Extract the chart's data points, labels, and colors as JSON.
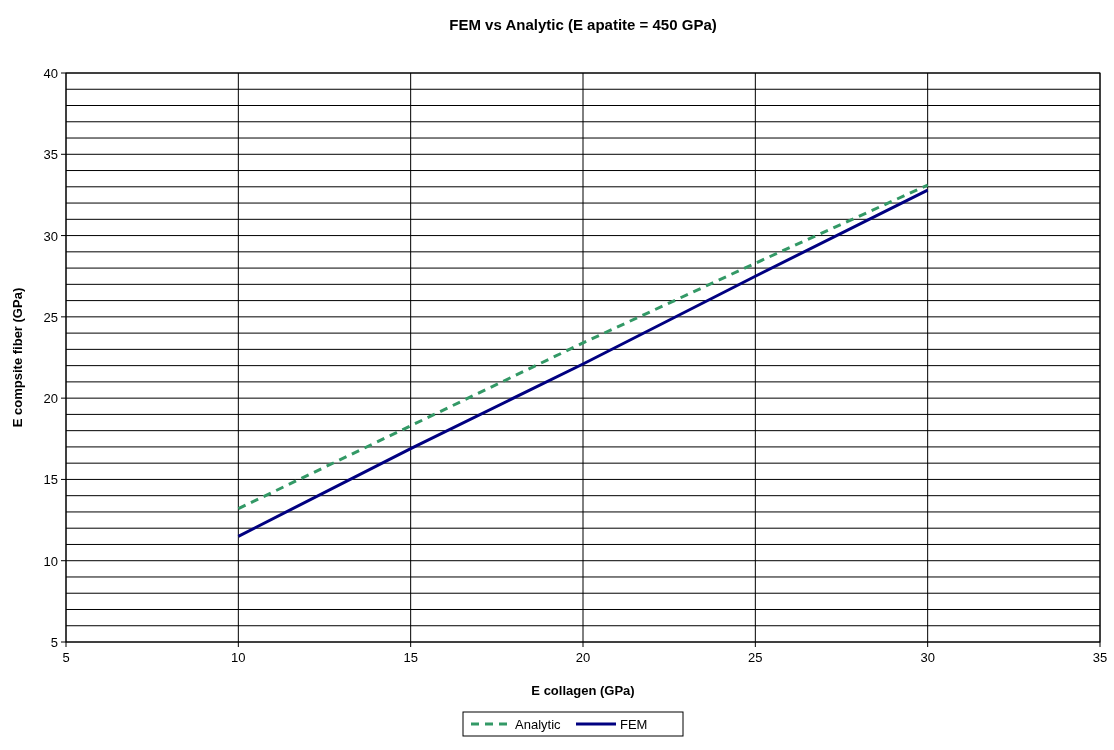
{
  "chart_data": {
    "type": "line",
    "title": "FEM vs Analytic (E apatite = 450 GPa)",
    "xlabel": "E collagen (GPa)",
    "ylabel": "E compsite fiber (GPa)",
    "xlim": [
      5,
      35
    ],
    "xticks": [
      5,
      10,
      15,
      20,
      25,
      30,
      35
    ],
    "ylim": [
      5,
      40
    ],
    "yticks": [
      5,
      {
        "value": 6,
        "label": null
      },
      {
        "value": 7,
        "label": null
      },
      {
        "value": 8,
        "label": null
      },
      {
        "value": 9,
        "label": null
      },
      10,
      {
        "value": 11,
        "label": null
      },
      {
        "value": 12,
        "label": null
      },
      {
        "value": 13,
        "label": null
      },
      {
        "value": 14,
        "label": null
      },
      15,
      {
        "value": 16,
        "label": null
      },
      {
        "value": 17,
        "label": null
      },
      {
        "value": 18,
        "label": null
      },
      {
        "value": 19,
        "label": null
      },
      20,
      {
        "value": 21,
        "label": null
      },
      {
        "value": 22,
        "label": null
      },
      {
        "value": 23,
        "label": null
      },
      {
        "value": 24,
        "label": null
      },
      25,
      {
        "value": 26,
        "label": null
      },
      {
        "value": 27,
        "label": null
      },
      {
        "value": 28,
        "label": null
      },
      {
        "value": 29,
        "label": null
      },
      30,
      {
        "value": 31,
        "label": null
      },
      {
        "value": 32,
        "label": null
      },
      {
        "value": 33,
        "label": null
      },
      {
        "value": 34,
        "label": null
      },
      35,
      {
        "value": 36,
        "label": null
      },
      {
        "value": 37,
        "label": null
      },
      {
        "value": 38,
        "label": null
      },
      {
        "value": 39,
        "label": null
      },
      40
    ],
    "grid": true,
    "legend": "bottom",
    "marker": "none",
    "series": [
      {
        "name": "Analytic",
        "color": "#339966",
        "line_style": "dashed",
        "x": [
          10,
          15,
          20,
          25,
          30
        ],
        "values": [
          13.2,
          18.3,
          23.4,
          28.3,
          33.1
        ]
      },
      {
        "name": "FEM",
        "color": "#000080",
        "line_style": "solid",
        "x": [
          10,
          15,
          20,
          25,
          30
        ],
        "values": [
          11.5,
          16.9,
          22.1,
          27.5,
          32.8
        ]
      }
    ]
  }
}
